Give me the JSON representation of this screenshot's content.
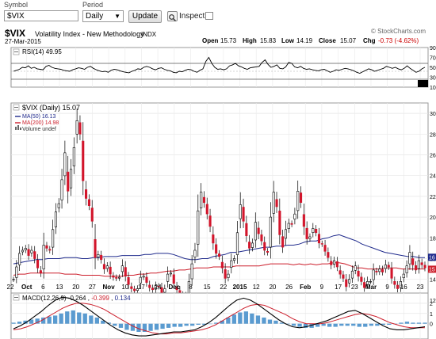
{
  "toolbar": {
    "symbol_label": "Symbol",
    "symbol_value": "$VIX",
    "period_label": "Period",
    "period_value": "Daily",
    "update_label": "Update",
    "inspect_label": "Inspect"
  },
  "header": {
    "symbol": "$VIX",
    "name": "Volatility Index - New Methodology",
    "exchange": "INDX",
    "date": "27-Mar-2015",
    "watermark": "© StockCharts.com",
    "open_label": "Open",
    "open": "15.73",
    "high_label": "High",
    "high": "15.83",
    "low_label": "Low",
    "low": "14.19",
    "close_label": "Close",
    "close": "15.07",
    "chg_label": "Chg",
    "chg": "-0.73 (-4.62%)"
  },
  "chart_data": [
    {
      "type": "line",
      "panel": "rsi",
      "title": "RSI(14) 49.95",
      "ylim": [
        10,
        90
      ],
      "ticks": [
        "90",
        "70",
        "50",
        "30",
        "10"
      ],
      "reference_lines": [
        70,
        30
      ],
      "last_value": 49.95,
      "values": [
        42,
        44,
        46,
        50,
        49,
        53,
        48,
        50,
        47,
        46,
        45,
        52,
        54,
        50,
        48,
        47,
        46,
        44,
        43,
        42,
        45,
        47,
        49,
        48,
        46,
        50,
        52,
        48,
        45,
        43,
        41,
        42,
        40,
        44,
        46,
        45,
        43,
        41,
        40,
        39,
        42,
        44,
        47,
        46,
        50,
        52,
        50,
        47,
        45,
        48,
        49,
        46,
        44,
        43,
        40,
        39,
        42,
        41,
        44,
        46,
        45,
        42,
        40,
        44,
        47,
        62,
        70,
        58,
        50,
        46,
        47,
        45,
        47,
        53,
        55,
        58,
        53,
        51,
        48,
        46,
        49,
        50,
        51,
        52,
        60,
        65,
        56,
        50,
        52,
        55,
        48,
        47,
        51,
        60,
        58,
        51,
        49,
        52,
        48,
        46,
        47,
        45,
        44,
        43,
        45,
        46,
        43,
        40,
        42,
        45,
        44,
        46,
        48,
        47,
        45,
        43,
        40,
        38,
        41,
        44,
        47,
        45,
        42,
        44,
        46,
        48,
        52,
        50,
        48,
        50,
        47,
        45,
        48,
        53,
        48,
        44,
        40,
        42,
        47,
        50
      ]
    },
    {
      "type": "candlestick",
      "panel": "price",
      "title": "$VIX (Daily) 15.07",
      "ylim": [
        11,
        31
      ],
      "y_ticks": [
        "30",
        "28",
        "26",
        "24",
        "22",
        "20",
        "18",
        "16",
        "14",
        "12"
      ],
      "x_tick_labels": [
        "22",
        "Oct",
        "6",
        "13",
        "20",
        "27",
        "Nov",
        "10",
        "17",
        "24",
        "Dec",
        "8",
        "15",
        "22",
        "2015",
        "12",
        "20",
        "26",
        "Feb",
        "9",
        "17",
        "23",
        "Mar",
        "9",
        "16",
        "23"
      ],
      "legend": [
        {
          "name": "MA(50) 16.13",
          "color": "#1f2a8c"
        },
        {
          "name": "MA(200) 14.98",
          "color": "#cc1e2b"
        },
        {
          "name": "Volume undef",
          "color": "#666666"
        }
      ],
      "price_tags": [
        {
          "label": "16",
          "value": 16.13,
          "color": "#1f2a8c"
        },
        {
          "label": "15",
          "value": 14.98,
          "color": "#cc1e2b"
        }
      ],
      "close": [
        14.0,
        15.2,
        16.5,
        16.8,
        17.0,
        16.3,
        16.8,
        16.0,
        15.1,
        14.6,
        17.3,
        17.0,
        16.8,
        18.8,
        20.5,
        21.3,
        23.6,
        26.2,
        22.5,
        24.6,
        26.7,
        29.3,
        28.0,
        23.5,
        21.8,
        21.1,
        19.6,
        16.1,
        16.4,
        15.9,
        15.0,
        15.3,
        14.5,
        14.2,
        14.1,
        14.2,
        15.3,
        14.3,
        13.5,
        13.1,
        12.9,
        13.1,
        14.2,
        14.3,
        13.7,
        13.2,
        13.0,
        13.4,
        13.3,
        12.7,
        13.1,
        14.5,
        14.6,
        13.6,
        13.0,
        12.5,
        12.0,
        12.4,
        13.8,
        15.5,
        16.8,
        20.6,
        22.4,
        21.4,
        20.3,
        19.1,
        17.5,
        16.5,
        16.2,
        15.1,
        14.1,
        14.5,
        15.8,
        16.0,
        18.5,
        21.2,
        19.6,
        18.2,
        17.0,
        17.5,
        19.5,
        18.4,
        17.7,
        16.8,
        16.6,
        20.0,
        22.4,
        21.0,
        18.3,
        17.1,
        18.8,
        19.4,
        19.3,
        20.3,
        22.5,
        21.4,
        19.1,
        17.9,
        18.1,
        18.9,
        18.5,
        17.5,
        17.4,
        16.7,
        16.1,
        15.4,
        15.8,
        15.2,
        14.5,
        14.1,
        13.3,
        14.0,
        14.8,
        15.3,
        14.3,
        13.8,
        13.2,
        13.8,
        13.8,
        14.9,
        14.7,
        15.0,
        14.7,
        15.4,
        15.2,
        14.1,
        13.5,
        13.1,
        13.8,
        14.5,
        15.3,
        16.6,
        15.4,
        14.9,
        15.8,
        15.4,
        15.1
      ],
      "ma50": [
        15.5,
        15.6,
        15.7,
        15.8,
        15.9,
        15.9,
        16.0,
        16.0,
        16.0,
        16.1,
        16.1,
        16.1,
        16.0,
        16.0,
        16.1,
        16.1,
        16.2,
        16.2,
        16.2,
        16.3,
        16.3,
        16.3,
        16.3,
        16.4,
        16.4,
        16.5,
        16.5,
        16.5,
        16.4,
        16.2,
        16.0,
        15.9,
        15.9,
        16.0,
        16.0,
        16.2,
        16.3,
        16.4,
        16.6,
        16.6,
        16.7,
        16.8,
        16.9,
        17.0,
        17.1,
        17.1,
        17.2,
        17.2,
        17.3,
        17.3,
        17.4,
        17.6,
        17.7,
        17.7,
        17.9,
        18.0,
        18.2,
        18.3,
        18.1,
        17.9,
        17.7,
        17.4,
        17.2,
        17.0,
        16.8,
        16.6,
        16.5,
        16.4,
        16.3,
        16.2,
        16.2,
        16.1,
        16.1
      ],
      "ma200": [
        14.4,
        14.5,
        14.5,
        14.6,
        14.6,
        14.6,
        14.6,
        14.6,
        14.6,
        14.5,
        14.5,
        14.5,
        14.4,
        14.4,
        14.4,
        14.4,
        14.3,
        14.3,
        14.3,
        14.3,
        14.4,
        14.4,
        14.5,
        14.5,
        14.6,
        14.6,
        14.7,
        14.8,
        14.8,
        14.9,
        14.9,
        15.0,
        15.1,
        15.1,
        15.1,
        15.2,
        15.2,
        15.2,
        15.2,
        15.3,
        15.3,
        15.3,
        15.3,
        15.3,
        15.4,
        15.5,
        15.5,
        15.5,
        15.5,
        15.4,
        15.5,
        15.4,
        15.5,
        15.4,
        15.5,
        15.5,
        15.6,
        15.6,
        15.5,
        15.3,
        15.1,
        15.1,
        15.0,
        15.0,
        15.0,
        15.1,
        15.1,
        15.1,
        15.0,
        15.0,
        15.0,
        15.0,
        15.0
      ]
    },
    {
      "type": "bar",
      "panel": "macd",
      "title": "MACD(12,26,9)",
      "values_label": {
        "macd": "-0.264",
        "signal": "-0.399",
        "hist": "0.134"
      },
      "legend_colors": {
        "macd": "#000000",
        "signal": "#cc1e2b",
        "hist": "#1f2a8c"
      },
      "ylim": [
        -1.5,
        3
      ],
      "y_ticks": [
        "2",
        "1",
        "0"
      ],
      "hist": [
        0.1,
        0.2,
        0.3,
        0.4,
        0.5,
        0.6,
        0.7,
        0.8,
        1.0,
        1.2,
        1.3,
        1.1,
        1.0,
        0.8,
        0.6,
        0.3,
        0.1,
        -0.2,
        -0.4,
        -0.6,
        -0.7,
        -0.8,
        -0.8,
        -0.7,
        -0.6,
        -0.5,
        -0.4,
        -0.3,
        -0.3,
        -0.2,
        -0.2,
        -0.1,
        -0.1,
        0.0,
        0.1,
        0.3,
        0.6,
        0.9,
        1.1,
        1.2,
        1.0,
        0.8,
        0.6,
        0.4,
        0.3,
        0.1,
        0.0,
        -0.2,
        -0.3,
        -0.4,
        -0.4,
        -0.3,
        -0.2,
        -0.3,
        -0.3,
        -0.2,
        -0.2,
        -0.2,
        -0.3,
        -0.3,
        -0.2,
        -0.2,
        -0.1,
        -0.1,
        0.0,
        0.1,
        0.2,
        0.1,
        0.1,
        0.1
      ],
      "macd": [
        -0.5,
        -0.2,
        0.2,
        0.7,
        1.2,
        1.8,
        2.3,
        2.6,
        2.5,
        2.2,
        1.8,
        1.3,
        0.8,
        0.3,
        -0.2,
        -0.6,
        -0.9,
        -1.1,
        -1.2,
        -1.2,
        -1.1,
        -1.0,
        -0.9,
        -0.8,
        -0.8,
        -0.7,
        -0.6,
        -0.3,
        0.1,
        0.6,
        1.2,
        1.8,
        2.3,
        2.5,
        2.3,
        1.9,
        1.4,
        0.9,
        0.4,
        0.0,
        -0.3,
        -0.4,
        -0.3,
        -0.1,
        0.1,
        0.3,
        0.6,
        0.9,
        1.2,
        1.3,
        1.0,
        0.6,
        0.2,
        -0.2,
        -0.5,
        -0.6,
        -0.6,
        -0.5,
        -0.4,
        -0.3
      ],
      "signal": [
        -0.6,
        -0.5,
        -0.3,
        0.0,
        0.3,
        0.7,
        1.1,
        1.5,
        1.8,
        2.0,
        2.0,
        1.9,
        1.7,
        1.4,
        1.0,
        0.6,
        0.2,
        -0.2,
        -0.5,
        -0.7,
        -0.9,
        -1.0,
        -1.0,
        -0.9,
        -0.9,
        -0.8,
        -0.7,
        -0.6,
        -0.4,
        -0.1,
        0.3,
        0.7,
        1.1,
        1.5,
        1.8,
        1.9,
        1.8,
        1.5,
        1.2,
        0.9,
        0.5,
        0.2,
        0.0,
        0.0,
        0.0,
        0.1,
        0.3,
        0.5,
        0.7,
        0.9,
        1.0,
        0.9,
        0.7,
        0.4,
        0.1,
        -0.1,
        -0.3,
        -0.4,
        -0.4,
        -0.4
      ]
    }
  ]
}
